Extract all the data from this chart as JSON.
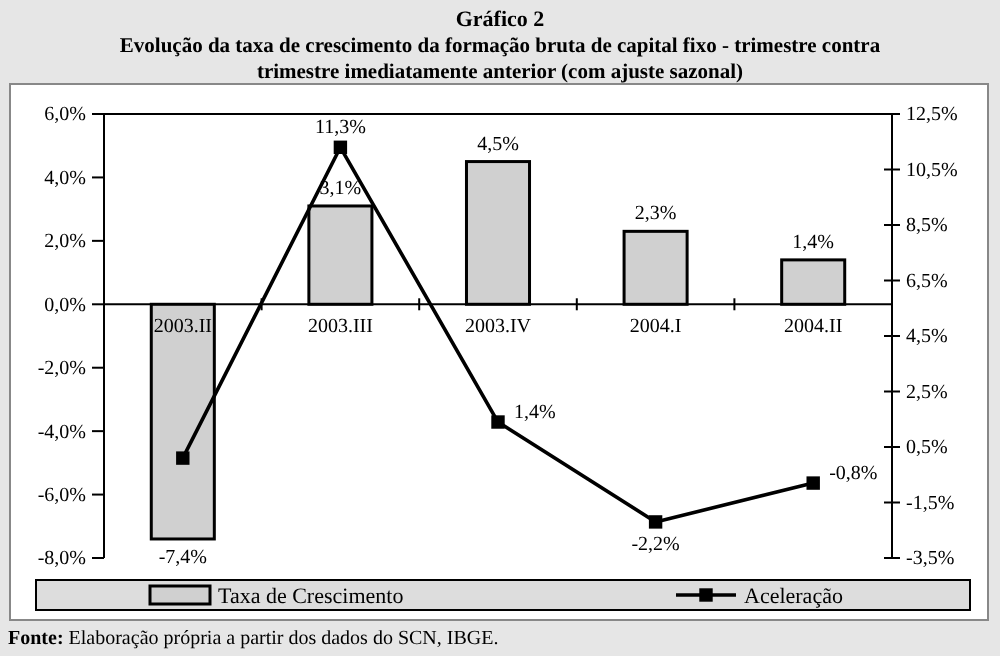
{
  "chart_data": {
    "type": "bar",
    "title": "Gráfico 2",
    "subtitle": "Evolução da taxa de crescimento da formação bruta de capital fixo - trimestre contra trimestre imediatamente anterior (com ajuste sazonal)",
    "categories": [
      "2003.II",
      "2003.III",
      "2003.IV",
      "2004.I",
      "2004.II"
    ],
    "series": [
      {
        "name": "Taxa de Crescimento",
        "color": "#d0d0d0",
        "values": [
          -7.4,
          3.1,
          4.5,
          2.3,
          1.4
        ],
        "value_labels": [
          "-7,4%",
          "3,1%",
          "4,5%",
          "2,3%",
          "1,4%"
        ]
      },
      {
        "name": "Aceleração",
        "type": "line",
        "axis": "y2",
        "color": "#000000",
        "values": [
          0.1,
          11.3,
          1.4,
          -2.2,
          -0.8
        ],
        "value_labels": [
          null,
          "11,3%",
          "1,4%",
          "-2,2%",
          "-0,8%"
        ]
      }
    ],
    "ylim": [
      -8,
      6
    ],
    "yticks": [
      {
        "value": -8,
        "label": "-8,0%"
      },
      {
        "value": -6,
        "label": "-6,0%"
      },
      {
        "value": -4,
        "label": "-4,0%"
      },
      {
        "value": -2,
        "label": "-2,0%"
      },
      {
        "value": 0,
        "label": "0,0%"
      },
      {
        "value": 2,
        "label": "2,0%"
      },
      {
        "value": 4,
        "label": "4,0%"
      },
      {
        "value": 6,
        "label": "6,0%"
      }
    ],
    "y2lim": [
      -3.5,
      12.5
    ],
    "y2ticks": [
      {
        "value": -3.5,
        "label": "-3,5%"
      },
      {
        "value": -1.5,
        "label": "-1,5%"
      },
      {
        "value": 0.5,
        "label": "0,5%"
      },
      {
        "value": 2.5,
        "label": "2,5%"
      },
      {
        "value": 4.5,
        "label": "4,5%"
      },
      {
        "value": 6.5,
        "label": "6,5%"
      },
      {
        "value": 8.5,
        "label": "8,5%"
      },
      {
        "value": 10.5,
        "label": "10,5%"
      },
      {
        "value": 12.5,
        "label": "12,5%"
      }
    ],
    "legend": "bottom",
    "marker": "square",
    "line_style": "solid",
    "annotations": [
      "Fonte: Elaboração própria a partir dos dados do SCN, IBGE."
    ]
  }
}
